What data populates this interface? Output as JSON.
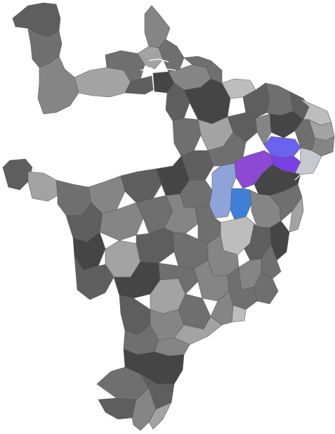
{
  "map": {
    "palette": {
      "background": "#ffffff",
      "border": "#5a5a5a",
      "gray_dark": "#454545",
      "gray_mid_dark": "#5e5e5e",
      "gray_mid": "#6f6f6f",
      "gray_mid_light": "#858585",
      "gray_light": "#a3a3a3",
      "gray_lighter": "#bdbdbd",
      "highlight_violet": "#8b49d4",
      "highlight_purple": "#7b3fe6",
      "highlight_indigo": "#6a63ef",
      "highlight_steel_blue": "#3f7fd8",
      "highlight_periwinkle": "#8ea3d8",
      "highlight_pale_gray": "#c8c8d2"
    },
    "highlighted_regions": [
      {
        "id": "hl-1",
        "color": "#8b49d4"
      },
      {
        "id": "hl-2",
        "color": "#7b3fe6"
      },
      {
        "id": "hl-3",
        "color": "#6a63ef"
      },
      {
        "id": "hl-4",
        "color": "#3f7fd8"
      },
      {
        "id": "hl-5",
        "color": "#8ea3d8"
      },
      {
        "id": "hl-6",
        "color": "#c8c8d2"
      }
    ]
  }
}
